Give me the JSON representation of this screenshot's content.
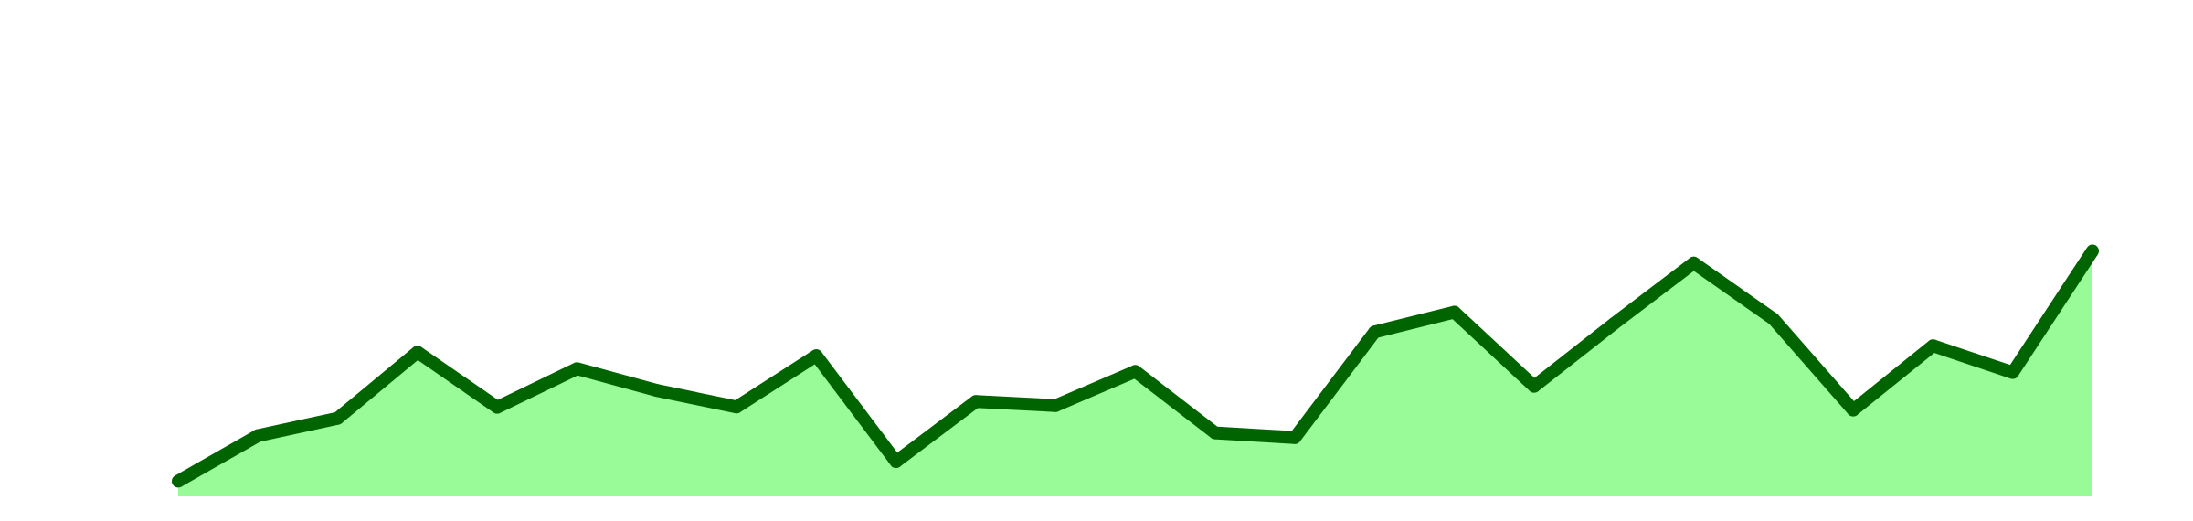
{
  "chart_data": {
    "type": "area",
    "title": "",
    "xlabel": "",
    "ylabel": "",
    "x": [
      1,
      2,
      3,
      4,
      5,
      6,
      7,
      8,
      9,
      10,
      11,
      12,
      13,
      14,
      15,
      16,
      17,
      18,
      19,
      20,
      21,
      22,
      23,
      24,
      25
    ],
    "series": [
      {
        "values": [
          0.55,
          2.2,
          2.83,
          5.23,
          3.23,
          4.63,
          3.84,
          3.24,
          5.1,
          1.26,
          3.44,
          3.29,
          4.53,
          2.3,
          2.13,
          5.96,
          6.68,
          3.99,
          6.26,
          8.46,
          6.43,
          3.13,
          5.46,
          4.49,
          8.9
        ],
        "line_color": "#006400",
        "fill_color": "#98FB98"
      }
    ],
    "ylim": [
      0,
      18
    ],
    "grid": false,
    "legend": false
  }
}
